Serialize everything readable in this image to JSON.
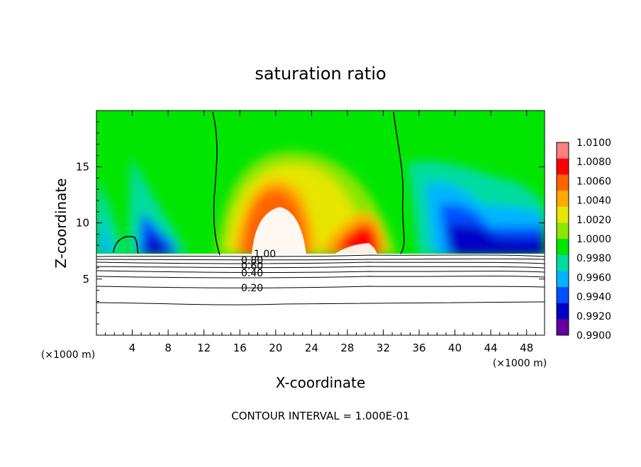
{
  "chart_data": {
    "type": "heatmap",
    "title": "saturation ratio",
    "xlabel": "X-coordinate",
    "ylabel": "Z-coordinate",
    "x_unit_left": "(×1000 m)",
    "x_unit_right": "(×1000 m)",
    "xlim": [
      0,
      50
    ],
    "ylim": [
      0,
      20
    ],
    "x_ticks": [
      4,
      8,
      12,
      16,
      20,
      24,
      28,
      32,
      36,
      40,
      44,
      48
    ],
    "y_ticks": [
      5,
      10,
      15
    ],
    "colorbar": {
      "levels": [
        "1.0100",
        "1.0080",
        "1.0060",
        "1.0040",
        "1.0020",
        "1.0000",
        "0.9980",
        "0.9960",
        "0.9940",
        "0.9920",
        "0.9900"
      ],
      "colors": [
        "#fa8080",
        "#ff0000",
        "#ff6400",
        "#ffaa00",
        "#e6e600",
        "#8ce600",
        "#00e600",
        "#00dca0",
        "#00b4ff",
        "#0050ff",
        "#0000c8",
        "#6400a0"
      ]
    },
    "contour_labels": [
      "1.00",
      "0.80",
      "0.60",
      "0.40",
      "0.20"
    ],
    "contour_interval_note": "CONTOUR INTERVAL = 1.000E-01"
  }
}
